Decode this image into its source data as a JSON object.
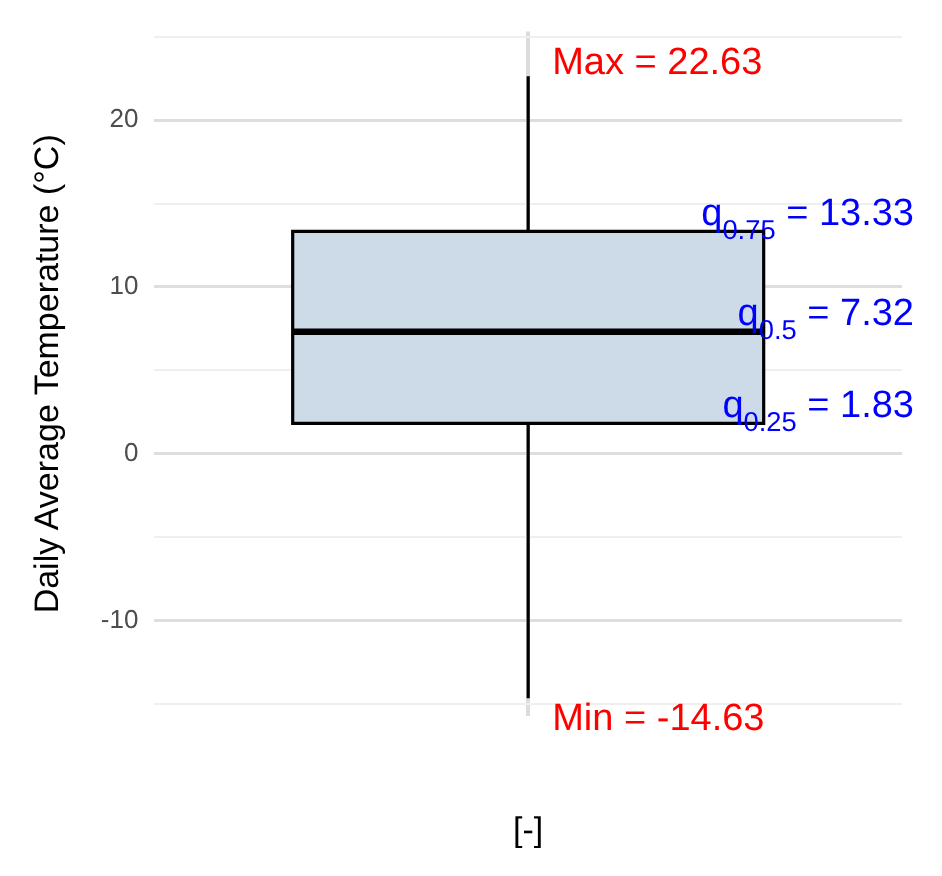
{
  "chart_data": {
    "type": "box",
    "ylabel": "Daily Average Temperature (°C)",
    "xlabel": "[-]",
    "categories": [
      null
    ],
    "color": "#cddbe8",
    "boxes": [
      {
        "low": -14.63,
        "q1": 1.83,
        "median": 7.32,
        "q3": 13.33,
        "high": 22.63
      }
    ],
    "ylim": [
      -15.7,
      25.3
    ],
    "yticks": [
      {
        "value": -15,
        "label": null
      },
      -10,
      {
        "value": -5,
        "label": null
      },
      0,
      {
        "value": 5,
        "label": null
      },
      10,
      {
        "value": 15,
        "label": null
      },
      20,
      {
        "value": 25,
        "label": null
      }
    ],
    "grid": true,
    "annotations": [
      "Max = 22.63",
      "q$_{0.75}$ = 13.33",
      "q$_{0.5}$ = 7.32",
      "q$_{0.25}$ = 1.83",
      "Min = -14.63"
    ]
  }
}
